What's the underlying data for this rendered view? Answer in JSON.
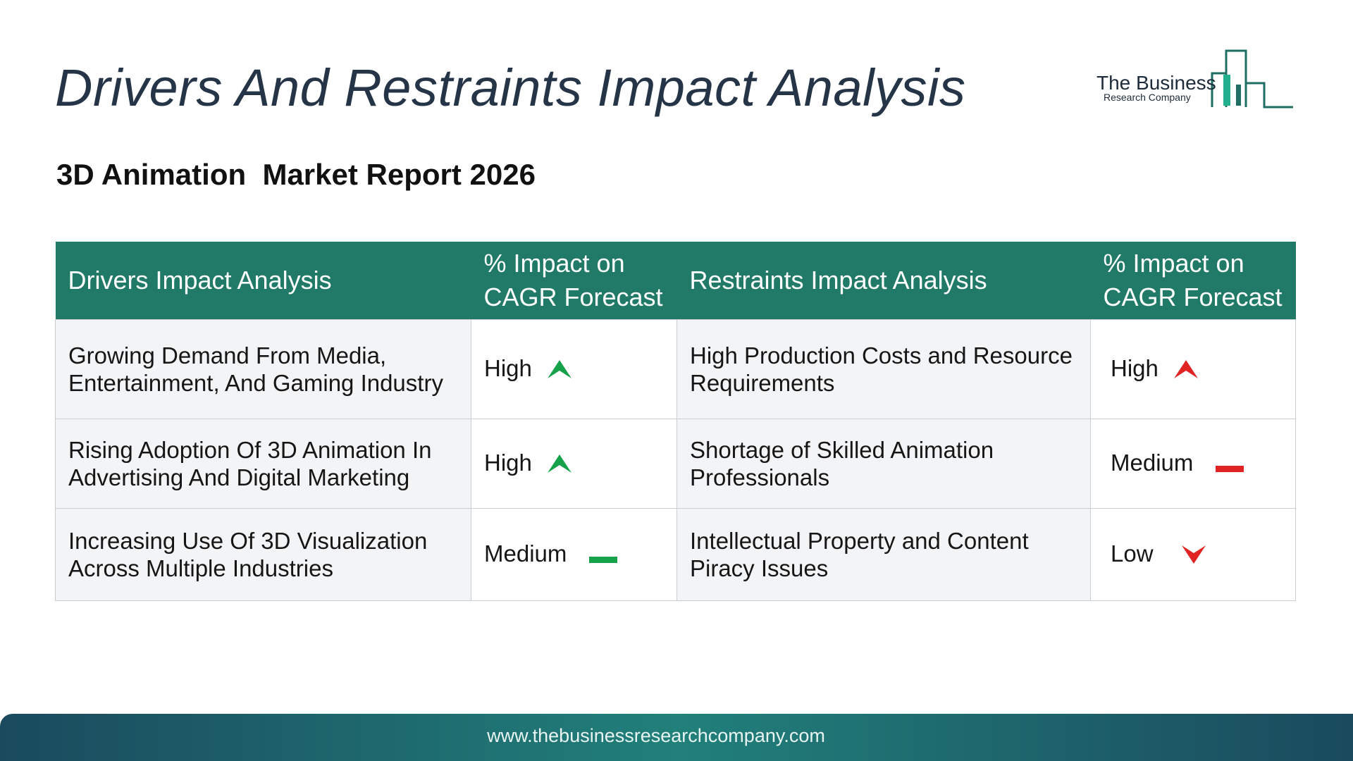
{
  "title": "Drivers And Restraints Impact Analysis",
  "subtitle": "3D Animation  Market Report 2026",
  "logo": {
    "line1": "The Business",
    "line2": "Research Company"
  },
  "table": {
    "headers": {
      "drivers": "Drivers Impact Analysis",
      "drivers_impact": "% Impact on CAGR Forecast",
      "restraints": "Restraints Impact Analysis",
      "restraints_impact": "% Impact on CAGR Forecast"
    },
    "rows": [
      {
        "driver": "Growing Demand From Media, Entertainment, And Gaming Industry",
        "driver_impact": "High",
        "driver_indicator": "up-arrow-icon",
        "restraint": "High Production Costs and Resource Requirements",
        "restraint_impact": "High",
        "restraint_indicator": "up-arrow-icon"
      },
      {
        "driver": "Rising Adoption Of 3D Animation In Advertising And Digital Marketing",
        "driver_impact": "High",
        "driver_indicator": "up-arrow-icon",
        "restraint": "Shortage of Skilled Animation Professionals",
        "restraint_impact": "Medium",
        "restraint_indicator": "dash-icon"
      },
      {
        "driver": "Increasing Use Of 3D Visualization Across Multiple Industries",
        "driver_impact": "Medium",
        "driver_indicator": "dash-icon",
        "restraint": "Intellectual Property and Content Piracy Issues",
        "restraint_impact": "Low",
        "restraint_indicator": "down-arrow-icon"
      }
    ]
  },
  "colors": {
    "header_bg": "#217a68",
    "driver_impact": "#15a24a",
    "restraint_impact": "#e02424",
    "title": "#253547"
  },
  "footer": {
    "url": "www.thebusinessresearchcompany.com"
  }
}
